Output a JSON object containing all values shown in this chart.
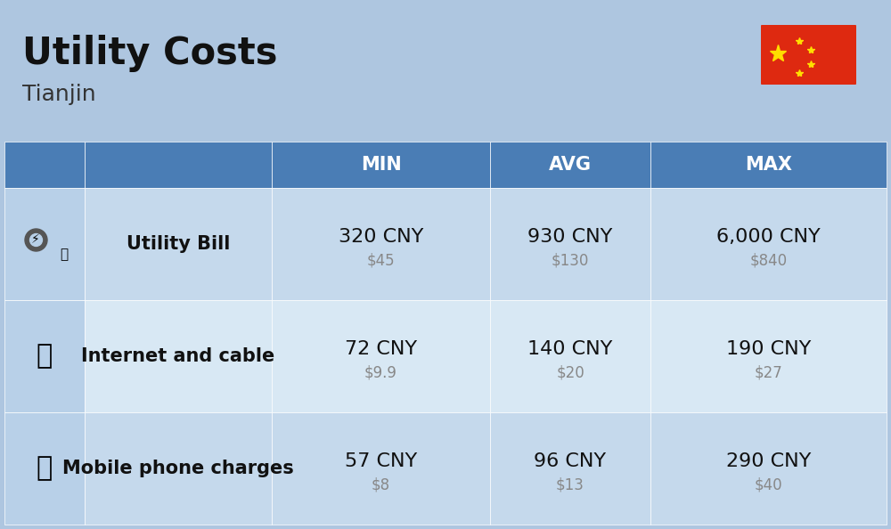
{
  "title": "Utility Costs",
  "subtitle": "Tianjin",
  "background_color": "#aec6e0",
  "header_color": "#4a7db5",
  "header_text_color": "#ffffff",
  "row_color_odd": "#c5d9ec",
  "row_color_even": "#d8e8f4",
  "icon_col_color": "#b8d0e8",
  "columns": [
    "MIN",
    "AVG",
    "MAX"
  ],
  "rows": [
    {
      "label": "Utility Bill",
      "icon": "utility",
      "min_cny": "320 CNY",
      "min_usd": "$45",
      "avg_cny": "930 CNY",
      "avg_usd": "$130",
      "max_cny": "6,000 CNY",
      "max_usd": "$840"
    },
    {
      "label": "Internet and cable",
      "icon": "internet",
      "min_cny": "72 CNY",
      "min_usd": "$9.9",
      "avg_cny": "140 CNY",
      "avg_usd": "$20",
      "max_cny": "190 CNY",
      "max_usd": "$27"
    },
    {
      "label": "Mobile phone charges",
      "icon": "mobile",
      "min_cny": "57 CNY",
      "min_usd": "$8",
      "avg_cny": "96 CNY",
      "avg_usd": "$13",
      "max_cny": "290 CNY",
      "max_usd": "$40"
    }
  ],
  "cny_fontsize": 16,
  "usd_fontsize": 12,
  "usd_color": "#888888",
  "label_fontsize": 15,
  "header_fontsize": 15,
  "title_fontsize": 30,
  "subtitle_fontsize": 18,
  "flag_colors": {
    "red": "#DE2910",
    "yellow": "#FFDE00"
  }
}
